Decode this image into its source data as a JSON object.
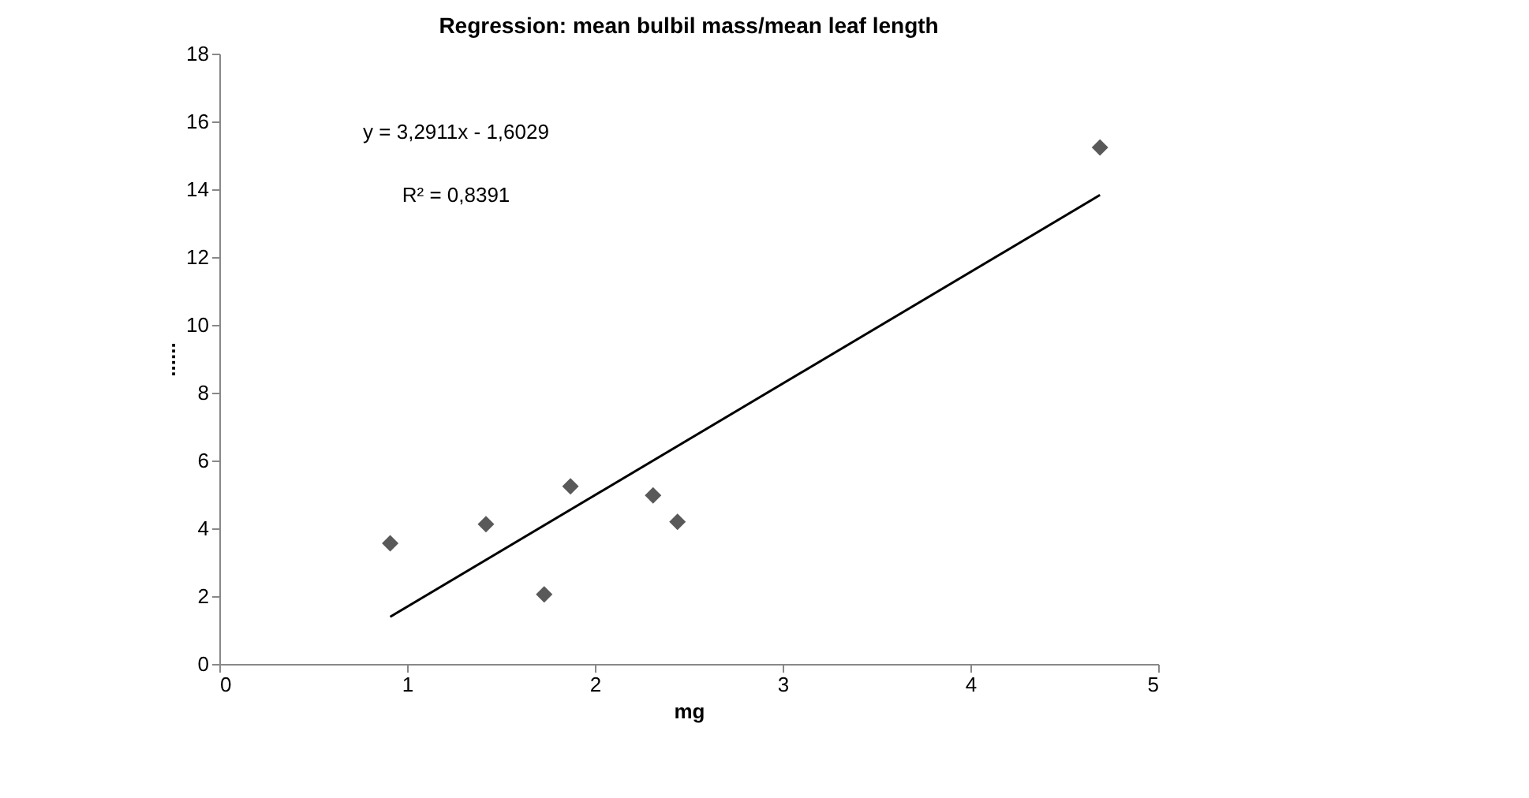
{
  "chart_data": {
    "type": "scatter",
    "title": "Regression: mean bulbil mass/mean leaf length",
    "xlabel": "mg",
    "ylabel": "......",
    "series": [
      {
        "color": "#595959",
        "marker": "diamond",
        "x": [
          0.91,
          1.42,
          1.73,
          1.87,
          2.31,
          2.44,
          4.69
        ],
        "values": [
          3.56,
          4.12,
          2.05,
          5.24,
          4.97,
          4.19,
          15.23
        ]
      },
      {
        "type": "line",
        "color": "#000000",
        "x": [
          0.91,
          4.69
        ],
        "values": [
          1.39,
          13.83
        ]
      }
    ],
    "xlim": [
      0,
      5
    ],
    "xticks": [
      0,
      1,
      2,
      3,
      4,
      5
    ],
    "ylim": [
      0,
      18
    ],
    "yticks": [
      0,
      2,
      4,
      6,
      8,
      10,
      12,
      14,
      16,
      18
    ],
    "grid": false,
    "annotations": [
      "y = 3,2911x - 1,6029",
      "R² = 0,8391"
    ]
  }
}
